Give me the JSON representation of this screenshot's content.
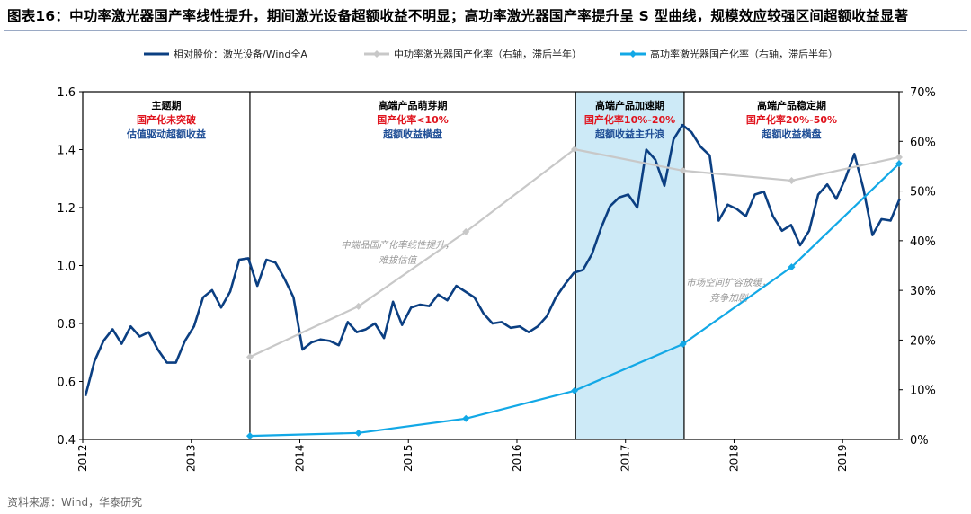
{
  "title": "图表16：中功率激光器国产率线性提升，期间激光设备超额收益不明显；高功率激光器国产率提升呈 S 型曲线，规模效应较强区间超额收益显著",
  "source": "资料来源：Wind，华泰研究",
  "colors": {
    "dark": "#0b3f82",
    "gray": "#c8c8c8",
    "cyan": "#12a8e6",
    "shade": "#cdeaf7",
    "red": "#e0141e",
    "phase_blue": "#1f4e96"
  },
  "chart_data": {
    "type": "line",
    "legend": [
      "相对股价：激光设备/Wind全A",
      "中功率激光器国产化率（右轴，滞后半年）",
      "高功率激光器国产化率（右轴，滞后半年）"
    ],
    "legend_position": "top",
    "x_ticks": [
      "2012",
      "2013",
      "2014",
      "2015",
      "2016",
      "2017",
      "2018",
      "2019"
    ],
    "xlim": [
      2012,
      2019.52
    ],
    "y_left": {
      "ylim": [
        0.4,
        1.6
      ],
      "ticks": [
        "0.4",
        "0.6",
        "0.8",
        "1.0",
        "1.2",
        "1.4",
        "1.6"
      ]
    },
    "y_right": {
      "ylim": [
        0,
        70
      ],
      "ticks": [
        "0%",
        "10%",
        "20%",
        "30%",
        "40%",
        "50%",
        "60%",
        "70%"
      ]
    },
    "series": [
      {
        "name": "相对股价：激光设备/Wind全A",
        "axis": "left",
        "start": "2012-01",
        "freq": "monthly",
        "values": [
          0.55,
          0.67,
          0.74,
          0.78,
          0.73,
          0.79,
          0.755,
          0.77,
          0.71,
          0.665,
          0.665,
          0.74,
          0.79,
          0.89,
          0.915,
          0.855,
          0.91,
          1.02,
          1.025,
          0.93,
          1.02,
          1.01,
          0.955,
          0.89,
          0.71,
          0.735,
          0.745,
          0.74,
          0.725,
          0.805,
          0.77,
          0.78,
          0.8,
          0.75,
          0.875,
          0.795,
          0.855,
          0.865,
          0.86,
          0.9,
          0.88,
          0.93,
          0.91,
          0.89,
          0.835,
          0.8,
          0.805,
          0.785,
          0.79,
          0.77,
          0.79,
          0.825,
          0.89,
          0.935,
          0.975,
          0.985,
          1.04,
          1.13,
          1.205,
          1.235,
          1.245,
          1.2,
          1.4,
          1.365,
          1.275,
          1.435,
          1.485,
          1.46,
          1.41,
          1.38,
          1.155,
          1.21,
          1.195,
          1.17,
          1.245,
          1.255,
          1.17,
          1.12,
          1.14,
          1.07,
          1.12,
          1.245,
          1.28,
          1.23,
          1.3,
          1.385,
          1.265,
          1.105,
          1.16,
          1.155,
          1.23
        ]
      },
      {
        "name": "中功率激光器国产化率（右轴，滞后半年）",
        "axis": "right",
        "x": [
          2013.54,
          2014.54,
          2015.53,
          2016.53,
          2017.53,
          2018.53,
          2019.52
        ],
        "values": [
          16.6,
          26.8,
          41.8,
          58.4,
          54.1,
          52.1,
          56.8
        ]
      },
      {
        "name": "高功率激光器国产化率（右轴，滞后半年）",
        "axis": "right",
        "x": [
          2013.54,
          2014.54,
          2015.53,
          2016.53,
          2017.53,
          2018.53,
          2019.52
        ],
        "values": [
          0.7,
          1.3,
          4.2,
          9.8,
          19.2,
          34.7,
          55.5
        ]
      }
    ],
    "dividers": [
      2013.54,
      2016.54,
      2017.54
    ],
    "shaded_range": [
      2016.54,
      2017.54
    ],
    "phases": [
      {
        "name": "主题期",
        "rate": "国产化未突破",
        "return": "估值驱动超额收益",
        "range": [
          2012,
          2013.54
        ]
      },
      {
        "name": "高端产品萌芽期",
        "rate": "国产化率<10%",
        "return": "超额收益横盘",
        "range": [
          2013.54,
          2016.54
        ]
      },
      {
        "name": "高端产品加速期",
        "rate": "国产化率10%-20%",
        "return": "超额收益主升浪",
        "range": [
          2016.54,
          2017.54
        ]
      },
      {
        "name": "高端产品稳定期",
        "rate": "国产化率20%-50%",
        "return": "超额收益横盘",
        "range": [
          2017.54,
          2019.52
        ]
      }
    ],
    "annotations": [
      {
        "lines": [
          "中端品国产化率线性提升，",
          "难拔估值"
        ],
        "at": [
          2014.9,
          1.06
        ]
      },
      {
        "lines": [
          "市场空间扩容放缓，",
          "竞争加剧"
        ],
        "at": [
          2017.95,
          0.93
        ]
      }
    ]
  }
}
